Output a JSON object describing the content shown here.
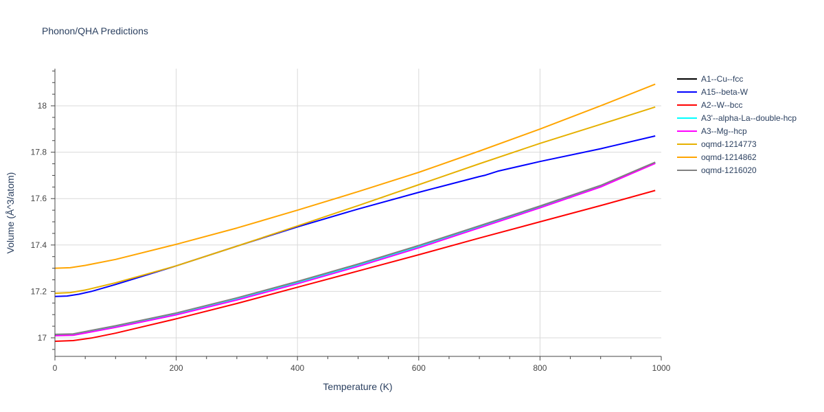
{
  "chart_data": {
    "type": "line",
    "title": "Phonon/QHA Predictions",
    "xlabel": "Temperature (K)",
    "ylabel": "Volume (Å^3/atom)",
    "xlim": [
      0,
      1000
    ],
    "ylim": [
      16.92,
      18.16
    ],
    "xticks": [
      0,
      200,
      400,
      600,
      800,
      1000
    ],
    "yticks": [
      17,
      17.2,
      17.4,
      17.6,
      17.8,
      18
    ],
    "grid": true,
    "legend_position": "right",
    "series": [
      {
        "name": "A1--Cu--fcc",
        "color": "#000000",
        "x": [
          0,
          30,
          100,
          200,
          300,
          400,
          500,
          600,
          700,
          800,
          900,
          990
        ],
        "y": [
          17.013,
          17.015,
          17.05,
          17.105,
          17.17,
          17.24,
          17.315,
          17.395,
          17.48,
          17.565,
          17.655,
          17.755
        ]
      },
      {
        "name": "A15--beta-W",
        "color": "#0000ff",
        "x": [
          0,
          20,
          40,
          60,
          100,
          200,
          300,
          400,
          500,
          600,
          700,
          710,
          730,
          800,
          900,
          990
        ],
        "y": [
          17.178,
          17.18,
          17.188,
          17.2,
          17.23,
          17.31,
          17.395,
          17.478,
          17.555,
          17.627,
          17.695,
          17.701,
          17.718,
          17.76,
          17.815,
          17.87
        ]
      },
      {
        "name": "A2--W--bcc",
        "color": "#ff0000",
        "x": [
          0,
          30,
          60,
          100,
          200,
          300,
          400,
          500,
          600,
          700,
          800,
          900,
          990
        ],
        "y": [
          16.985,
          16.988,
          16.999,
          17.02,
          17.082,
          17.148,
          17.218,
          17.288,
          17.358,
          17.43,
          17.5,
          17.57,
          17.635
        ]
      },
      {
        "name": "A3'--alpha-La--double-hcp",
        "color": "#00ffff",
        "x": [
          0,
          30,
          100,
          200,
          300,
          400,
          500,
          600,
          700,
          800,
          900,
          990
        ],
        "y": [
          17.01,
          17.012,
          17.047,
          17.102,
          17.167,
          17.237,
          17.312,
          17.392,
          17.477,
          17.562,
          17.652,
          17.753
        ]
      },
      {
        "name": "A3--Mg--hcp",
        "color": "#ff00ff",
        "x": [
          0,
          30,
          100,
          200,
          300,
          400,
          500,
          600,
          700,
          800,
          900,
          990
        ],
        "y": [
          17.009,
          17.011,
          17.045,
          17.099,
          17.163,
          17.233,
          17.308,
          17.388,
          17.474,
          17.56,
          17.65,
          17.752
        ]
      },
      {
        "name": "oqmd-1214773",
        "color": "#e6b000",
        "x": [
          0,
          25,
          50,
          100,
          200,
          300,
          400,
          500,
          600,
          700,
          800,
          900,
          990
        ],
        "y": [
          17.192,
          17.195,
          17.206,
          17.237,
          17.31,
          17.395,
          17.482,
          17.57,
          17.66,
          17.75,
          17.838,
          17.92,
          17.995
        ]
      },
      {
        "name": "oqmd-1214862",
        "color": "#ffa500",
        "x": [
          0,
          25,
          50,
          100,
          200,
          300,
          400,
          500,
          600,
          700,
          800,
          900,
          990
        ],
        "y": [
          17.3,
          17.302,
          17.312,
          17.338,
          17.403,
          17.473,
          17.55,
          17.63,
          17.713,
          17.805,
          17.9,
          18.0,
          18.093
        ]
      },
      {
        "name": "oqmd-1216020",
        "color": "#808080",
        "x": [
          0,
          30,
          100,
          200,
          300,
          400,
          500,
          600,
          700,
          800,
          900,
          990
        ],
        "y": [
          17.015,
          17.017,
          17.052,
          17.107,
          17.172,
          17.243,
          17.318,
          17.398,
          17.483,
          17.568,
          17.657,
          17.757
        ]
      }
    ]
  }
}
